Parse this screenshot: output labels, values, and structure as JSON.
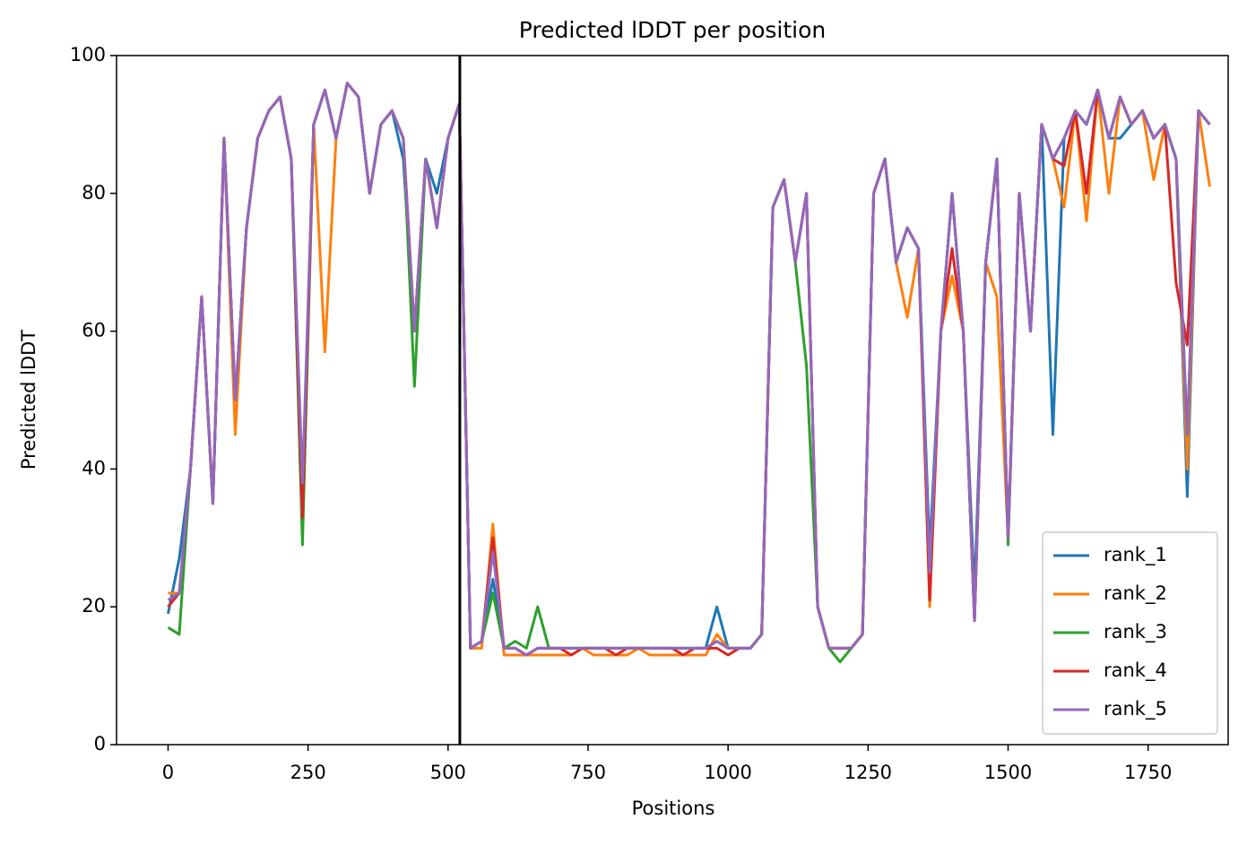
{
  "chart_data": {
    "type": "line",
    "title": "Predicted lDDT per position",
    "xlabel": "Positions",
    "ylabel": "Predicted lDDT",
    "xlim": [
      -92,
      1893
    ],
    "ylim": [
      0,
      100
    ],
    "xticks": [
      0,
      250,
      500,
      750,
      1000,
      1250,
      1500,
      1750
    ],
    "yticks": [
      0,
      20,
      40,
      60,
      80,
      100
    ],
    "vline": 521,
    "vline_color": "#000000",
    "legend": "lower right",
    "x": [
      0,
      20,
      40,
      60,
      80,
      100,
      120,
      140,
      160,
      180,
      200,
      220,
      240,
      260,
      280,
      300,
      320,
      340,
      360,
      380,
      400,
      420,
      440,
      460,
      480,
      500,
      520,
      540,
      560,
      580,
      600,
      620,
      640,
      660,
      680,
      700,
      720,
      740,
      760,
      780,
      800,
      820,
      840,
      860,
      880,
      900,
      920,
      940,
      960,
      980,
      1000,
      1020,
      1040,
      1060,
      1080,
      1100,
      1120,
      1140,
      1160,
      1180,
      1200,
      1220,
      1240,
      1260,
      1280,
      1300,
      1320,
      1340,
      1360,
      1380,
      1400,
      1420,
      1440,
      1460,
      1480,
      1500,
      1520,
      1540,
      1560,
      1580,
      1600,
      1620,
      1640,
      1660,
      1680,
      1700,
      1720,
      1740,
      1760,
      1780,
      1800,
      1820,
      1840,
      1860
    ],
    "series": [
      {
        "name": "rank_1",
        "color": "#1f77b4",
        "values": [
          19,
          27,
          40,
          65,
          35,
          88,
          50,
          75,
          88,
          92,
          94,
          85,
          35,
          90,
          95,
          88,
          96,
          94,
          80,
          90,
          92,
          85,
          60,
          85,
          80,
          88,
          93,
          14,
          15,
          24,
          14,
          14,
          13,
          14,
          14,
          14,
          14,
          14,
          14,
          14,
          14,
          14,
          14,
          14,
          14,
          14,
          14,
          14,
          14,
          20,
          14,
          14,
          14,
          16,
          78,
          82,
          70,
          80,
          20,
          14,
          14,
          14,
          16,
          80,
          85,
          70,
          75,
          72,
          28,
          60,
          80,
          60,
          22,
          70,
          85,
          30,
          80,
          60,
          90,
          45,
          88,
          92,
          90,
          95,
          88,
          88,
          90,
          92,
          88,
          90,
          85,
          36,
          92,
          90
        ]
      },
      {
        "name": "rank_2",
        "color": "#ff7f0e",
        "values": [
          22,
          22,
          40,
          65,
          35,
          88,
          45,
          75,
          88,
          92,
          94,
          85,
          34,
          90,
          57,
          88,
          96,
          94,
          80,
          90,
          92,
          88,
          60,
          85,
          75,
          88,
          93,
          14,
          14,
          32,
          13,
          13,
          13,
          13,
          13,
          13,
          13,
          14,
          13,
          13,
          13,
          13,
          14,
          13,
          13,
          13,
          13,
          13,
          13,
          16,
          14,
          14,
          14,
          16,
          78,
          82,
          70,
          80,
          20,
          14,
          14,
          14,
          16,
          80,
          85,
          70,
          62,
          72,
          20,
          60,
          68,
          60,
          18,
          70,
          65,
          30,
          80,
          60,
          90,
          85,
          78,
          92,
          76,
          95,
          80,
          94,
          90,
          92,
          82,
          90,
          85,
          40,
          92,
          81
        ]
      },
      {
        "name": "rank_3",
        "color": "#2ca02c",
        "values": [
          17,
          16,
          40,
          65,
          35,
          88,
          50,
          75,
          88,
          92,
          94,
          85,
          29,
          90,
          95,
          88,
          96,
          94,
          80,
          90,
          92,
          88,
          52,
          85,
          75,
          88,
          93,
          14,
          15,
          22,
          14,
          15,
          14,
          20,
          14,
          14,
          14,
          14,
          14,
          14,
          14,
          14,
          14,
          14,
          14,
          14,
          14,
          14,
          14,
          15,
          14,
          14,
          14,
          16,
          78,
          82,
          70,
          55,
          20,
          14,
          12,
          14,
          16,
          80,
          85,
          70,
          75,
          72,
          25,
          60,
          80,
          60,
          18,
          70,
          85,
          29,
          80,
          60,
          90,
          85,
          88,
          92,
          90,
          95,
          88,
          94,
          90,
          92,
          88,
          90,
          85,
          45,
          92,
          90
        ]
      },
      {
        "name": "rank_4",
        "color": "#d62728",
        "values": [
          20,
          22,
          40,
          65,
          35,
          88,
          50,
          75,
          88,
          92,
          94,
          85,
          33,
          90,
          95,
          88,
          96,
          94,
          80,
          90,
          92,
          88,
          60,
          85,
          75,
          88,
          93,
          14,
          15,
          30,
          14,
          14,
          13,
          14,
          14,
          14,
          13,
          14,
          14,
          14,
          13,
          14,
          14,
          14,
          14,
          14,
          13,
          14,
          14,
          14,
          13,
          14,
          14,
          16,
          78,
          82,
          70,
          80,
          20,
          14,
          14,
          14,
          16,
          80,
          85,
          70,
          75,
          72,
          21,
          60,
          72,
          60,
          18,
          70,
          85,
          30,
          80,
          60,
          90,
          85,
          84,
          92,
          80,
          95,
          88,
          94,
          90,
          92,
          88,
          90,
          67,
          58,
          92,
          90
        ]
      },
      {
        "name": "rank_5",
        "color": "#9467bd",
        "values": [
          21,
          22,
          40,
          65,
          35,
          88,
          50,
          75,
          88,
          92,
          94,
          85,
          38,
          90,
          95,
          88,
          96,
          94,
          80,
          90,
          92,
          88,
          60,
          85,
          75,
          88,
          93,
          14,
          15,
          28,
          14,
          14,
          13,
          14,
          14,
          14,
          14,
          14,
          14,
          14,
          14,
          14,
          14,
          14,
          14,
          14,
          14,
          14,
          14,
          15,
          14,
          14,
          14,
          16,
          78,
          82,
          70,
          80,
          20,
          14,
          14,
          14,
          16,
          80,
          85,
          70,
          75,
          72,
          25,
          60,
          80,
          60,
          18,
          70,
          85,
          30,
          80,
          60,
          90,
          85,
          88,
          92,
          90,
          95,
          88,
          94,
          90,
          92,
          88,
          90,
          85,
          45,
          92,
          90
        ]
      }
    ]
  }
}
